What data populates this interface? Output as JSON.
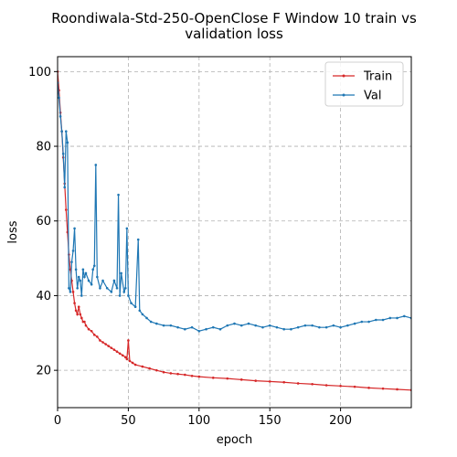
{
  "chart_data": {
    "type": "line",
    "title_lines": [
      "Roondiwala-Std-250-OpenClose F Window 10 train vs",
      "validation loss"
    ],
    "xlabel": "epoch",
    "ylabel": "loss",
    "xlim": [
      0,
      250
    ],
    "ylim": [
      10,
      104
    ],
    "xticks": [
      0,
      50,
      100,
      150,
      200
    ],
    "yticks": [
      20,
      40,
      60,
      80,
      100
    ],
    "grid": true,
    "legend_position": "top-right",
    "series": [
      {
        "name": "Train",
        "color": "#d62728",
        "points": [
          [
            0,
            100
          ],
          [
            1,
            95
          ],
          [
            2,
            89
          ],
          [
            3,
            84
          ],
          [
            4,
            77
          ],
          [
            5,
            70
          ],
          [
            6,
            63
          ],
          [
            7,
            57
          ],
          [
            8,
            51
          ],
          [
            9,
            47
          ],
          [
            10,
            44
          ],
          [
            11,
            41
          ],
          [
            12,
            38
          ],
          [
            13,
            36
          ],
          [
            14,
            35
          ],
          [
            15,
            37
          ],
          [
            16,
            35
          ],
          [
            17,
            34
          ],
          [
            18,
            33
          ],
          [
            19,
            33
          ],
          [
            20,
            32
          ],
          [
            22,
            31
          ],
          [
            24,
            30.5
          ],
          [
            26,
            29.5
          ],
          [
            28,
            29
          ],
          [
            30,
            28
          ],
          [
            32,
            27.5
          ],
          [
            34,
            27
          ],
          [
            36,
            26.5
          ],
          [
            38,
            26
          ],
          [
            40,
            25.5
          ],
          [
            42,
            25
          ],
          [
            44,
            24.5
          ],
          [
            46,
            24
          ],
          [
            48,
            23.5
          ],
          [
            49,
            23
          ],
          [
            50,
            28
          ],
          [
            51,
            22.5
          ],
          [
            53,
            22
          ],
          [
            55,
            21.5
          ],
          [
            60,
            21
          ],
          [
            65,
            20.5
          ],
          [
            70,
            20
          ],
          [
            75,
            19.5
          ],
          [
            80,
            19.2
          ],
          [
            85,
            19
          ],
          [
            90,
            18.8
          ],
          [
            95,
            18.5
          ],
          [
            100,
            18.3
          ],
          [
            110,
            18
          ],
          [
            120,
            17.8
          ],
          [
            130,
            17.5
          ],
          [
            140,
            17.2
          ],
          [
            150,
            17
          ],
          [
            160,
            16.8
          ],
          [
            170,
            16.5
          ],
          [
            180,
            16.3
          ],
          [
            190,
            16
          ],
          [
            200,
            15.8
          ],
          [
            210,
            15.6
          ],
          [
            220,
            15.3
          ],
          [
            230,
            15.1
          ],
          [
            240,
            14.9
          ],
          [
            250,
            14.7
          ]
        ]
      },
      {
        "name": "Val",
        "color": "#1f77b4",
        "points": [
          [
            0,
            97
          ],
          [
            1,
            93
          ],
          [
            2,
            88
          ],
          [
            3,
            84
          ],
          [
            4,
            78
          ],
          [
            5,
            69
          ],
          [
            6,
            84
          ],
          [
            7,
            81
          ],
          [
            8,
            42
          ],
          [
            9,
            41
          ],
          [
            10,
            49
          ],
          [
            11,
            52
          ],
          [
            12,
            58
          ],
          [
            13,
            47
          ],
          [
            14,
            42
          ],
          [
            15,
            45
          ],
          [
            16,
            44
          ],
          [
            17,
            40
          ],
          [
            18,
            47
          ],
          [
            19,
            45
          ],
          [
            20,
            46
          ],
          [
            22,
            44
          ],
          [
            24,
            43
          ],
          [
            25,
            47
          ],
          [
            26,
            48
          ],
          [
            27,
            75
          ],
          [
            28,
            45
          ],
          [
            30,
            42
          ],
          [
            32,
            44
          ],
          [
            35,
            42
          ],
          [
            38,
            41
          ],
          [
            40,
            44
          ],
          [
            42,
            42
          ],
          [
            43,
            67
          ],
          [
            44,
            40
          ],
          [
            45,
            46
          ],
          [
            47,
            41
          ],
          [
            48,
            42
          ],
          [
            49,
            58
          ],
          [
            50,
            40
          ],
          [
            52,
            38
          ],
          [
            55,
            37
          ],
          [
            57,
            55
          ],
          [
            58,
            36
          ],
          [
            60,
            35
          ],
          [
            63,
            34
          ],
          [
            66,
            33
          ],
          [
            70,
            32.5
          ],
          [
            75,
            32
          ],
          [
            80,
            32
          ],
          [
            85,
            31.5
          ],
          [
            90,
            31
          ],
          [
            95,
            31.5
          ],
          [
            100,
            30.5
          ],
          [
            105,
            31
          ],
          [
            110,
            31.5
          ],
          [
            115,
            31
          ],
          [
            120,
            32
          ],
          [
            125,
            32.5
          ],
          [
            130,
            32
          ],
          [
            135,
            32.5
          ],
          [
            140,
            32
          ],
          [
            145,
            31.5
          ],
          [
            150,
            32
          ],
          [
            155,
            31.5
          ],
          [
            160,
            31
          ],
          [
            165,
            31
          ],
          [
            170,
            31.5
          ],
          [
            175,
            32
          ],
          [
            180,
            32
          ],
          [
            185,
            31.5
          ],
          [
            190,
            31.5
          ],
          [
            195,
            32
          ],
          [
            200,
            31.5
          ],
          [
            205,
            32
          ],
          [
            210,
            32.5
          ],
          [
            215,
            33
          ],
          [
            220,
            33
          ],
          [
            225,
            33.5
          ],
          [
            230,
            33.5
          ],
          [
            235,
            34
          ],
          [
            240,
            34
          ],
          [
            245,
            34.5
          ],
          [
            250,
            34
          ]
        ]
      }
    ]
  }
}
